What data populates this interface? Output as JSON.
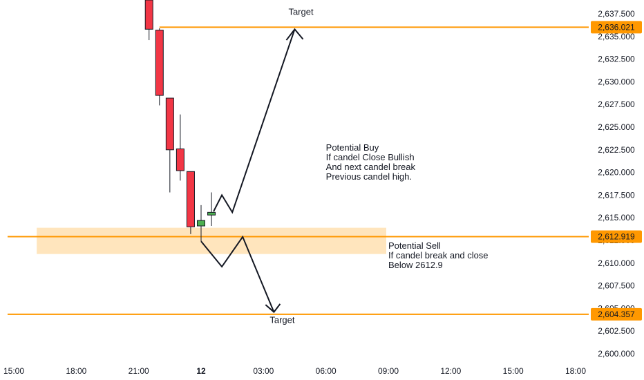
{
  "chart_data": {
    "type": "candlestick",
    "x_ticks": [
      "15:00",
      "18:00",
      "21:00",
      "12",
      "03:00",
      "06:00",
      "09:00",
      "12:00",
      "15:00",
      "18:00"
    ],
    "x_tick_bold": [
      false,
      false,
      false,
      true,
      false,
      false,
      false,
      false,
      false,
      false
    ],
    "y_ticks": [
      "2,637.500",
      "2,635.000",
      "2,632.500",
      "2,630.000",
      "2,627.500",
      "2,625.000",
      "2,622.500",
      "2,620.000",
      "2,617.500",
      "2,615.000",
      "2,612.500",
      "2,610.000",
      "2,607.500",
      "2,605.000",
      "2,602.500",
      "2,600.000"
    ],
    "y_tick_values": [
      2637.5,
      2635.0,
      2632.5,
      2630.0,
      2627.5,
      2625.0,
      2622.5,
      2620.0,
      2617.5,
      2615.0,
      2612.5,
      2610.0,
      2607.5,
      2605.0,
      2602.5,
      2600.0
    ],
    "x_tick_hours": [
      15,
      18,
      21,
      24,
      27,
      30,
      33,
      36,
      39,
      42
    ],
    "ylim": [
      2599.2,
      2639.1
    ],
    "xlim_hours": [
      14.7,
      43.1
    ],
    "candles": [
      {
        "t": 21.5,
        "open": 2639.5,
        "high": 2639.5,
        "close": 2635.8,
        "low": 2634.6
      },
      {
        "t": 22.0,
        "open": 2635.7,
        "high": 2635.9,
        "close": 2628.5,
        "low": 2627.4
      },
      {
        "t": 22.5,
        "open": 2628.2,
        "high": 2628.2,
        "close": 2622.5,
        "low": 2617.8
      },
      {
        "t": 23.0,
        "open": 2622.6,
        "high": 2626.4,
        "close": 2620.2,
        "low": 2619.1
      },
      {
        "t": 23.5,
        "open": 2620.1,
        "high": 2620.1,
        "close": 2614.0,
        "low": 2613.2
      },
      {
        "t": 24.0,
        "open": 2614.1,
        "high": 2616.4,
        "close": 2614.7,
        "low": 2612.4
      },
      {
        "t": 24.5,
        "open": 2615.3,
        "high": 2617.8,
        "close": 2615.6,
        "low": 2614.1
      }
    ],
    "bull_color": "#4caf50",
    "bear_color": "#f23645",
    "levels": [
      {
        "value": 2636.021,
        "label": "2,636.021",
        "start_t": 22.0
      },
      {
        "value": 2612.919,
        "label": "2,612.919",
        "start_t": 14.7
      },
      {
        "value": 2604.357,
        "label": "2,604.357",
        "start_t": 14.7
      }
    ],
    "level_color": "#ff9800",
    "zone": {
      "top": 2613.9,
      "bottom": 2611.0,
      "from_t": 16.1,
      "to_t": 32.9,
      "color": "#ffe0b2"
    },
    "buy_path": [
      [
        24.6,
        2615.7
      ],
      [
        25.0,
        2617.5
      ],
      [
        25.5,
        2615.6
      ],
      [
        28.5,
        2635.8
      ]
    ],
    "buy_arrow": {
      "left": [
        28.1,
        2634.6
      ],
      "tip": [
        28.5,
        2635.8
      ],
      "right": [
        28.9,
        2634.7
      ]
    },
    "sell_path": [
      [
        24.0,
        2612.4
      ],
      [
        25.0,
        2609.6
      ],
      [
        26.0,
        2612.9
      ],
      [
        27.5,
        2604.6
      ]
    ],
    "sell_arrow": {
      "left": [
        27.1,
        2605.4
      ],
      "tip": [
        27.5,
        2604.6
      ],
      "right": [
        27.8,
        2605.5
      ]
    },
    "annotations": {
      "target_top": {
        "text": "Target",
        "t": 28.2,
        "v": 2637.4
      },
      "target_bottom": {
        "text": "Target",
        "t": 27.3,
        "v": 2603.4
      },
      "buy": {
        "lines": [
          "Potential Buy",
          "If candel Close Bullish",
          "And next candel break",
          "Previous candel high."
        ],
        "t": 30.0,
        "v": 2622.4
      },
      "sell": {
        "lines": [
          "Potential Sell",
          "If candel break and close",
          "Below 2612.9"
        ],
        "t": 33.0,
        "v": 2611.6
      }
    }
  }
}
